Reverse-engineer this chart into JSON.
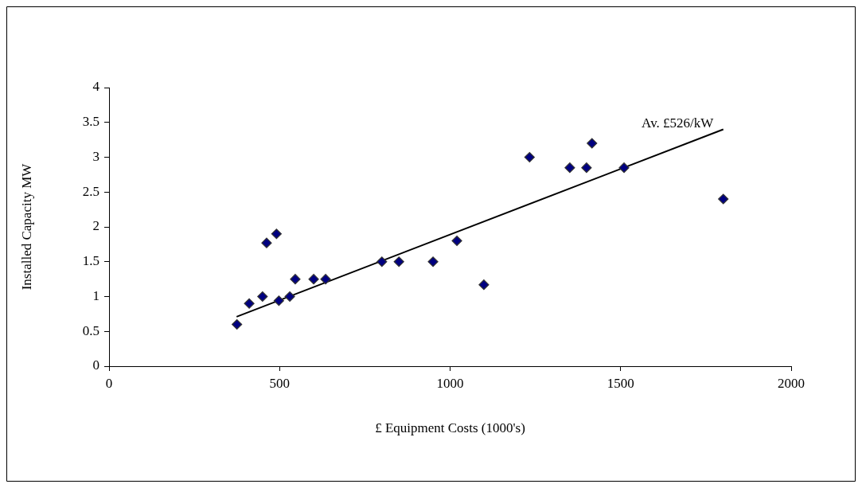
{
  "chart_data": {
    "type": "scatter",
    "xlabel": "£ Equipment Costs (1000's)",
    "ylabel": "Installed Capacity MW",
    "series": [
      {
        "color": "#000080",
        "marker": "diamond",
        "x": [
          375,
          411,
          450,
          462,
          491,
          498,
          530,
          546,
          600,
          635,
          800,
          850,
          950,
          1020,
          1099,
          1233,
          1351,
          1400,
          1416,
          1510,
          1801
        ],
        "values": [
          0.6,
          0.9,
          1.0,
          1.77,
          1.9,
          0.94,
          1.0,
          1.25,
          1.25,
          1.25,
          1.5,
          1.5,
          1.5,
          1.8,
          1.17,
          3.0,
          2.85,
          2.85,
          3.2,
          2.85,
          2.4
        ]
      },
      {
        "type": "line",
        "marker": "none",
        "color": "#000000",
        "x": [
          374,
          1801
        ],
        "values": [
          0.71,
          3.4
        ]
      }
    ],
    "xlim": [
      0,
      2000
    ],
    "xticks": [
      0,
      500,
      1000,
      1500,
      2000
    ],
    "ylim": [
      0,
      4
    ],
    "yticks": [
      0,
      0.5,
      1,
      1.5,
      2,
      2.5,
      3,
      3.5,
      4
    ],
    "grid": false,
    "legend": false,
    "annotations": [
      {
        "text": "Av. £526/kW",
        "x": 1800,
        "y": 3.4
      }
    ]
  }
}
